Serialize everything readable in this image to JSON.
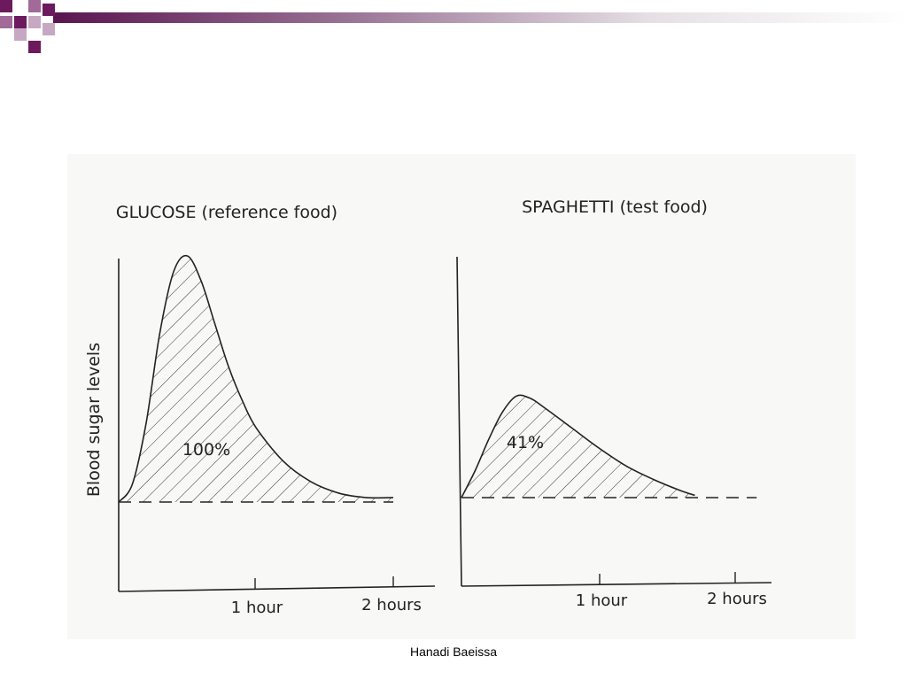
{
  "slide": {
    "footer": "Hanadi Baeissa",
    "theme_colors": {
      "accent": "#6b1a5e",
      "accent_light": "#a16a98"
    }
  },
  "shared": {
    "ylabel": "Blood sugar levels",
    "x_ticks": [
      "1 hour",
      "2 hours"
    ]
  },
  "chart_data": [
    {
      "type": "area",
      "title": "GLUCOSE (reference food)",
      "ylabel": "Blood sugar levels",
      "xlabel": "",
      "x_tick_labels": [
        "1 hour",
        "2 hours"
      ],
      "x_unit": "hours",
      "xlim": [
        0,
        2.1
      ],
      "ylim": [
        -0.6,
        1.6
      ],
      "baseline": 0,
      "x": [
        0,
        0.1,
        0.2,
        0.3,
        0.4,
        0.5,
        0.6,
        0.7,
        0.8,
        0.9,
        1.0,
        1.2,
        1.4,
        1.6,
        1.8,
        2.0
      ],
      "y": [
        0,
        0.08,
        0.35,
        0.75,
        1.02,
        1.09,
        0.98,
        0.79,
        0.6,
        0.45,
        0.33,
        0.18,
        0.09,
        0.04,
        0.02,
        0.02
      ],
      "fill_pattern": "hatched",
      "annotation": "100%",
      "baseline_style": "dashed",
      "grid": false
    },
    {
      "type": "area",
      "title": "SPAGHETTI (test food)",
      "ylabel": "",
      "xlabel": "",
      "x_tick_labels": [
        "1 hour",
        "2 hours"
      ],
      "x_unit": "hours",
      "xlim": [
        0,
        2.2
      ],
      "ylim": [
        -0.6,
        1.6
      ],
      "baseline": 0,
      "x": [
        0,
        0.1,
        0.2,
        0.3,
        0.4,
        0.5,
        0.6,
        0.8,
        1.0,
        1.2,
        1.4,
        1.6,
        1.7
      ],
      "y": [
        0,
        0.12,
        0.26,
        0.38,
        0.45,
        0.44,
        0.4,
        0.31,
        0.22,
        0.14,
        0.08,
        0.03,
        0.01
      ],
      "fill_pattern": "hatched",
      "annotation": "41%",
      "baseline_style": "dashed",
      "baseline_extends_to": 2.15,
      "grid": false
    }
  ]
}
